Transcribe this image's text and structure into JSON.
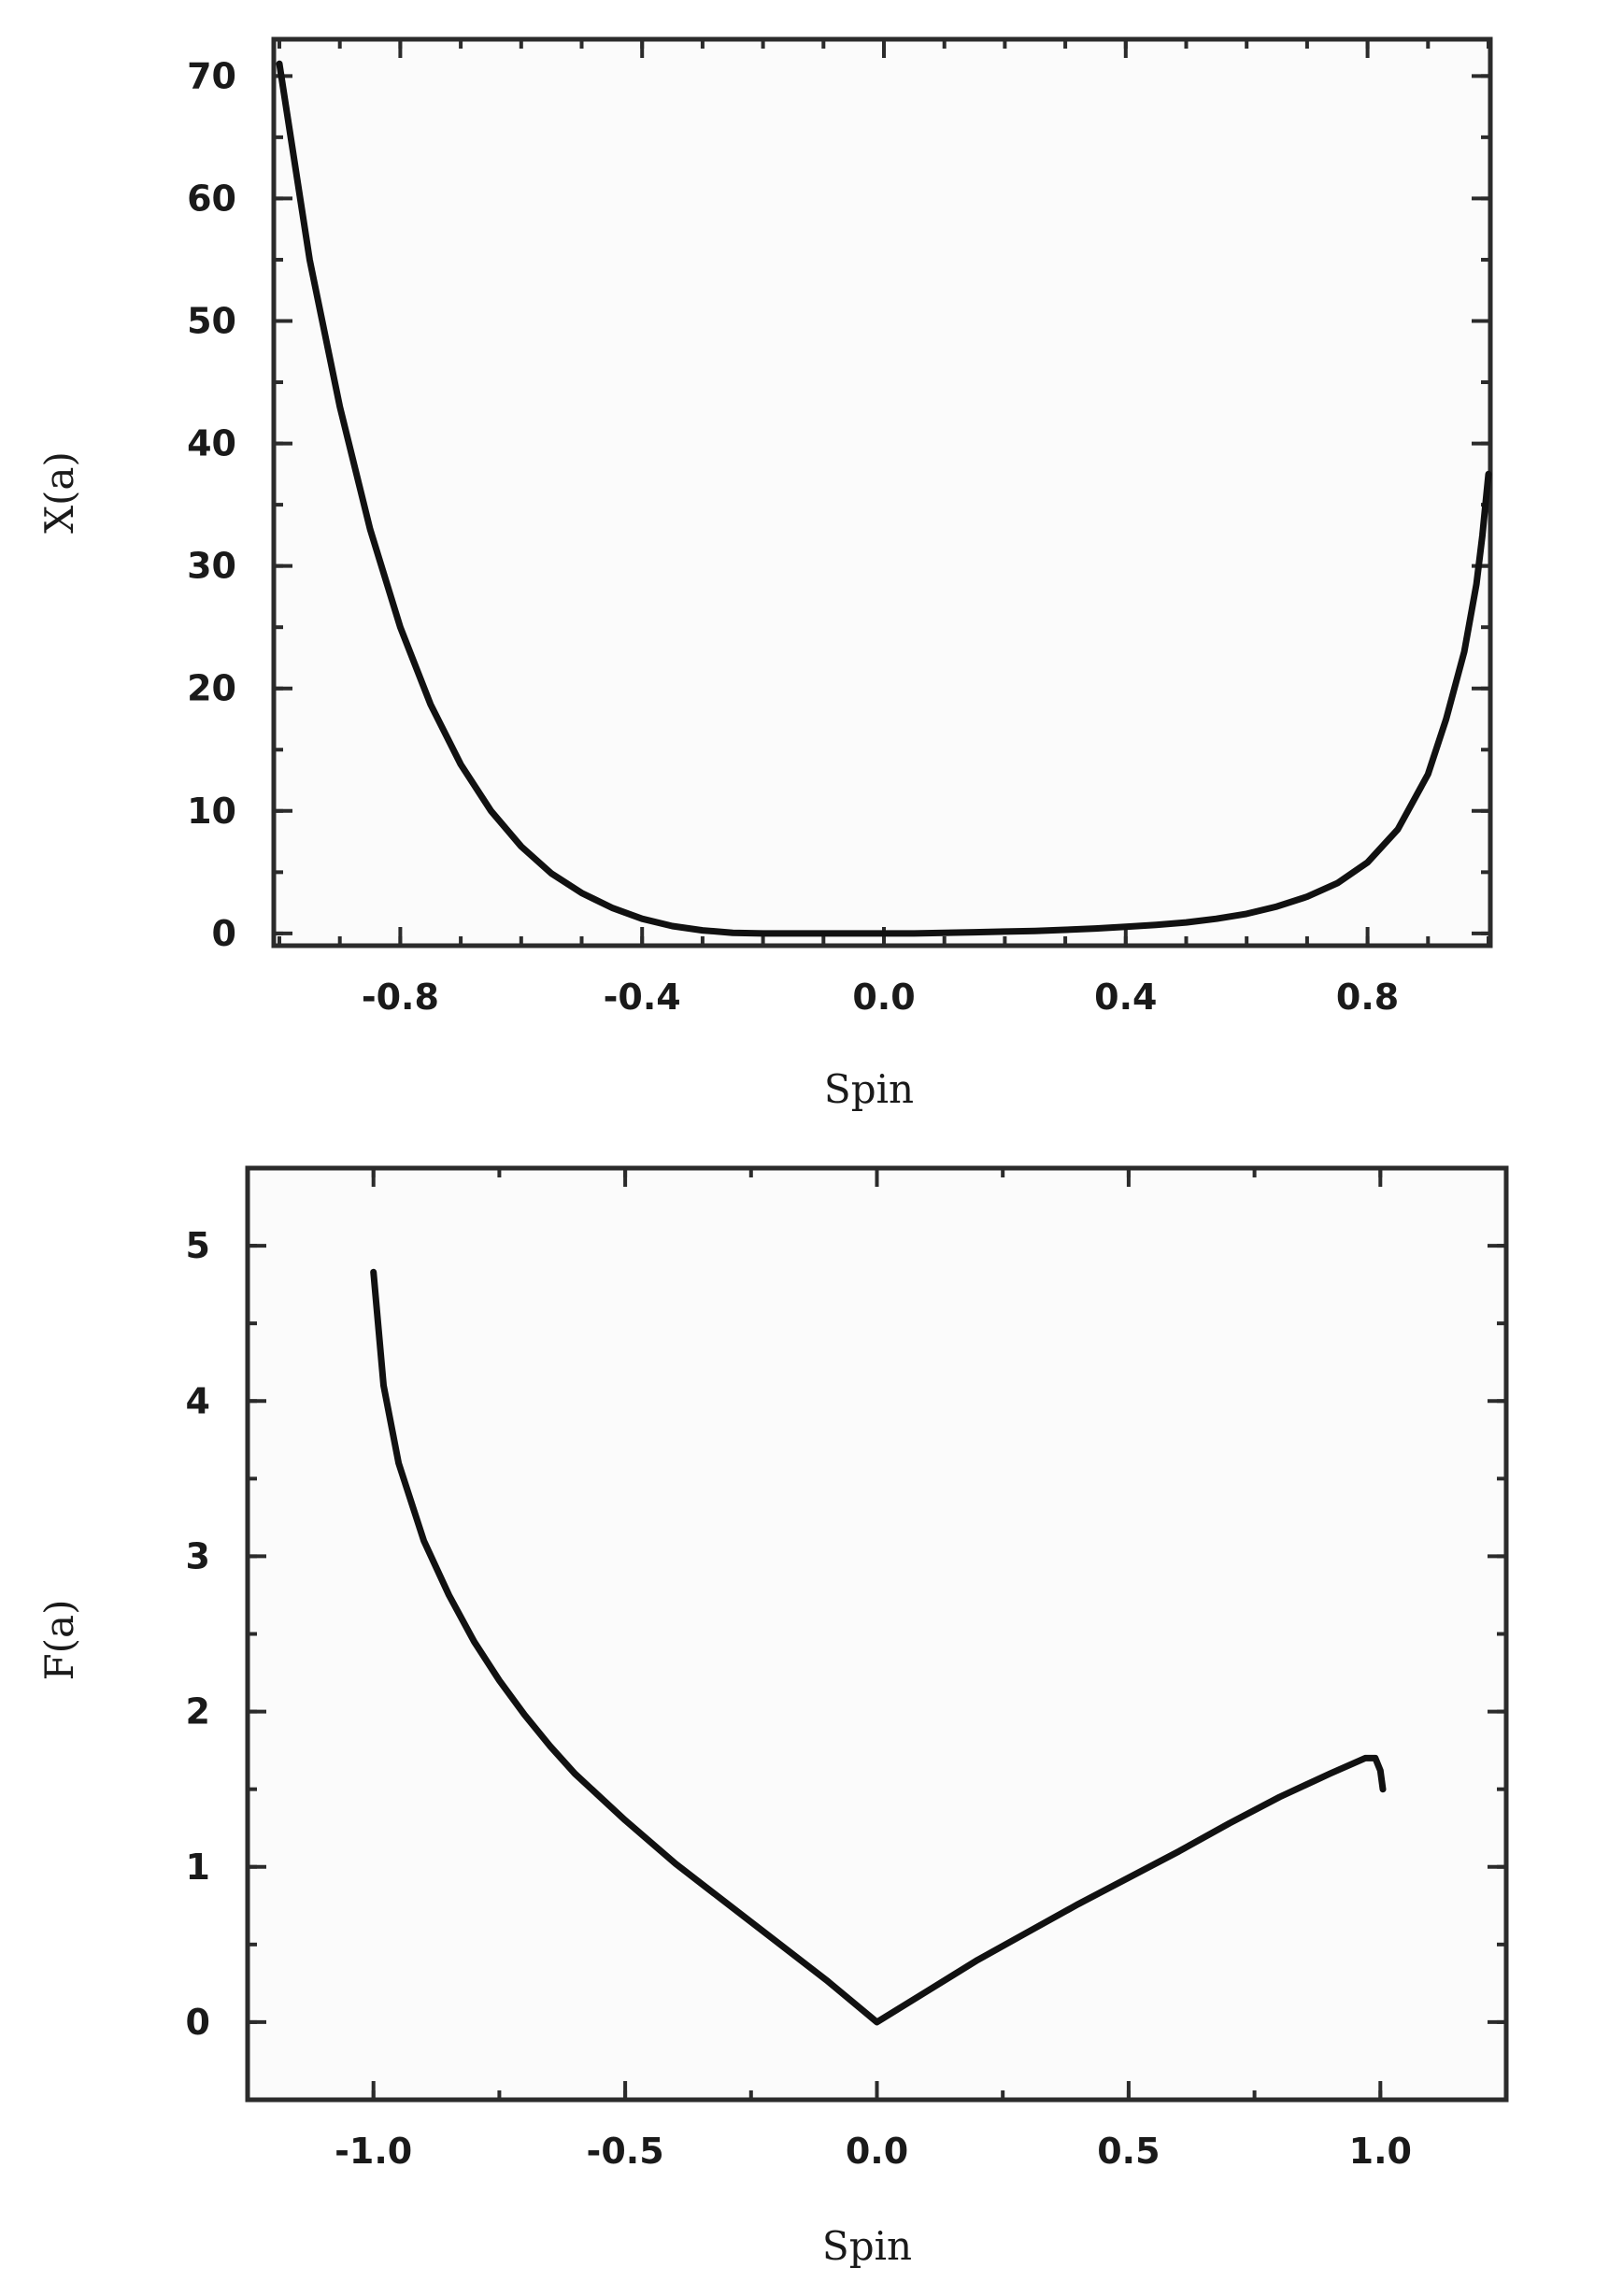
{
  "chart_data": [
    {
      "type": "line",
      "title": "",
      "xlabel": "Spin",
      "ylabel": "X(a)",
      "xlim": [
        -1.0,
        1.0
      ],
      "ylim": [
        -1,
        73
      ],
      "xticks": [
        -0.8,
        -0.4,
        0.0,
        0.4,
        0.8
      ],
      "xtick_labels": [
        "-0.8",
        "-0.4",
        "0.0",
        "0.4",
        "0.8"
      ],
      "yticks": [
        0,
        10,
        20,
        30,
        40,
        50,
        60,
        70
      ],
      "ytick_labels": [
        "0",
        "10",
        "20",
        "30",
        "40",
        "50",
        "60",
        "70"
      ],
      "grid": false,
      "legend": "none",
      "series": [
        {
          "x": [
            -1.0,
            -0.95,
            -0.9,
            -0.85,
            -0.8,
            -0.75,
            -0.7,
            -0.65,
            -0.6,
            -0.55,
            -0.5,
            -0.45,
            -0.4,
            -0.35,
            -0.3,
            -0.25,
            -0.2,
            -0.15,
            -0.1,
            -0.05,
            0.0,
            0.05,
            0.1,
            0.15,
            0.2,
            0.25,
            0.3,
            0.35,
            0.4,
            0.45,
            0.5,
            0.55,
            0.6,
            0.65,
            0.7,
            0.75,
            0.8,
            0.85,
            0.9,
            0.93,
            0.96,
            0.98,
            0.99,
            1.0
          ],
          "values": [
            71.0,
            55.0,
            43.0,
            33.0,
            25.0,
            18.7,
            13.8,
            10.0,
            7.1,
            4.9,
            3.3,
            2.1,
            1.2,
            0.6,
            0.25,
            0.05,
            0.0,
            0.0,
            0.0,
            0.0,
            0.0,
            0.0,
            0.05,
            0.1,
            0.15,
            0.2,
            0.3,
            0.4,
            0.55,
            0.7,
            0.9,
            1.2,
            1.6,
            2.2,
            3.0,
            4.1,
            5.8,
            8.5,
            13.0,
            17.5,
            23.0,
            28.5,
            32.5,
            37.5
          ]
        }
      ]
    },
    {
      "type": "line",
      "title": "",
      "xlabel": "Spin",
      "ylabel": "F(a)",
      "xlim": [
        -1.25,
        1.25
      ],
      "ylim": [
        -0.5,
        5.5
      ],
      "xticks": [
        -1.0,
        -0.5,
        0.0,
        0.5,
        1.0
      ],
      "xtick_labels": [
        "-1.0",
        "-0.5",
        "0.0",
        "0.5",
        "1.0"
      ],
      "yticks": [
        0,
        1,
        2,
        3,
        4,
        5
      ],
      "ytick_labels": [
        "0",
        "1",
        "2",
        "3",
        "4",
        "5"
      ],
      "grid": false,
      "legend": "none",
      "series": [
        {
          "x": [
            -1.0,
            -0.98,
            -0.95,
            -0.9,
            -0.85,
            -0.8,
            -0.75,
            -0.7,
            -0.65,
            -0.6,
            -0.5,
            -0.4,
            -0.3,
            -0.2,
            -0.1,
            0.0,
            0.1,
            0.2,
            0.3,
            0.4,
            0.5,
            0.6,
            0.7,
            0.8,
            0.9,
            0.97,
            0.99,
            1.0,
            1.005
          ],
          "values": [
            4.83,
            4.1,
            3.6,
            3.1,
            2.75,
            2.45,
            2.2,
            1.98,
            1.78,
            1.6,
            1.3,
            1.02,
            0.77,
            0.52,
            0.27,
            0.0,
            0.2,
            0.4,
            0.58,
            0.76,
            0.93,
            1.1,
            1.28,
            1.45,
            1.6,
            1.7,
            1.7,
            1.62,
            1.5
          ]
        }
      ]
    }
  ]
}
